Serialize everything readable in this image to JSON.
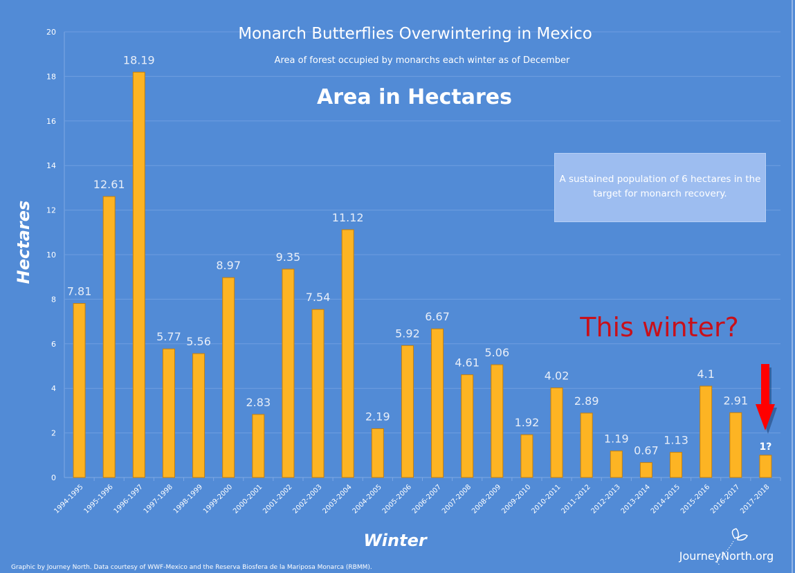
{
  "chart_data": {
    "type": "bar",
    "title": "Monarch Butterflies Overwintering in Mexico",
    "subtitle": "Area of forest occupied by monarchs each winter as of December",
    "heading": "Area in Hectares",
    "xlabel": "Winter",
    "ylabel": "Hectares",
    "ylim": [
      0,
      20
    ],
    "yticks": [
      0,
      2,
      4,
      6,
      8,
      10,
      12,
      14,
      16,
      18,
      20
    ],
    "grid": true,
    "categories": [
      "1994-1995",
      "1995-1996",
      "1996-1997",
      "1997-1998",
      "1998-1999",
      "1999-2000",
      "2000-2001",
      "2001-2002",
      "2002-2003",
      "2003-2004",
      "2004-2005",
      "2005-2006",
      "2006-2007",
      "2007-2008",
      "2008-2009",
      "2009-2010",
      "2010-2011",
      "2011-2012",
      "2012-2013",
      "2013-2014",
      "2014-2015",
      "2015-2016",
      "2016-2017",
      "2017-2018"
    ],
    "values": [
      7.81,
      12.61,
      18.19,
      5.77,
      5.56,
      8.97,
      2.83,
      9.35,
      7.54,
      11.12,
      2.19,
      5.92,
      6.67,
      4.61,
      5.06,
      1.92,
      4.02,
      2.89,
      1.19,
      0.67,
      1.13,
      4.1,
      2.91,
      1
    ],
    "labels": [
      "7.81",
      "12.61",
      "18.19",
      "5.77",
      "5.56",
      "8.97",
      "2.83",
      "9.35",
      "7.54",
      "11.12",
      "2.19",
      "5.92",
      "6.67",
      "4.61",
      "5.06",
      "1.92",
      "4.02",
      "2.89",
      "1.19",
      "0.67",
      "1.13",
      "4.1",
      "2.91",
      "1?"
    ],
    "annotations": {
      "note": "A sustained population of 6 hectares in the target for monarch recovery.",
      "callout": "This winter?"
    },
    "colors": {
      "background": "#528bd6",
      "bar": "#fdb423",
      "bar_edge": "#c27f0e",
      "callout": "#c8101a",
      "arrow": "#ff0000"
    }
  },
  "footer": {
    "credit": "Graphic by Journey North. Data courtesy of WWF-Mexico and the Reserva Biosfera de la Mariposa Monarca (RBMM).",
    "logo": "JourneyNorth.org"
  }
}
